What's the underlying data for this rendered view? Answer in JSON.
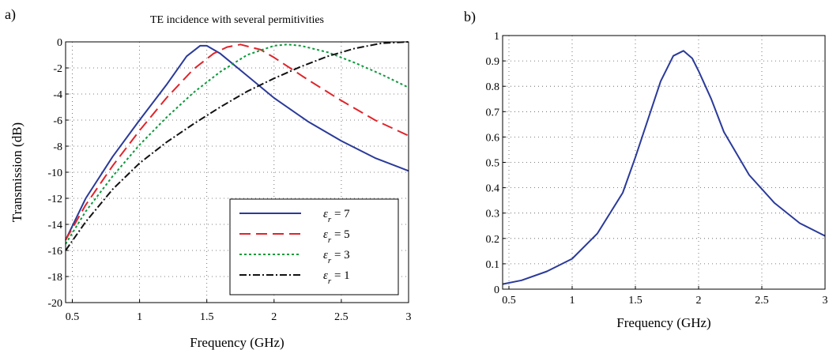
{
  "chart_data": [
    {
      "panel": "a)",
      "type": "line",
      "title": "TE incidence with several permitivities",
      "xlabel": "Frequency (GHz)",
      "ylabel": "Transmission (dB)",
      "xlim": [
        0.45,
        3
      ],
      "ylim": [
        -20,
        0
      ],
      "xticks": [
        "0.5",
        "1",
        "1.5",
        "2",
        "2.5",
        "3"
      ],
      "yticks": [
        "0",
        "-2",
        "-4",
        "-6",
        "-8",
        "-10",
        "-12",
        "-14",
        "-16",
        "-18",
        "-20"
      ],
      "grid": true,
      "legend": {
        "position": "bottom-right"
      },
      "series": [
        {
          "name": "εr = 7",
          "legend_base": "ε",
          "legend_sub": "r",
          "legend_value": " = 7",
          "color": "#2a3a9a",
          "dash": "solid",
          "x": [
            0.45,
            0.6,
            0.8,
            1.0,
            1.2,
            1.35,
            1.45,
            1.5,
            1.6,
            1.8,
            2.0,
            2.25,
            2.5,
            2.75,
            3.0
          ],
          "y": [
            -15.2,
            -12.0,
            -8.8,
            -6.0,
            -3.3,
            -1.1,
            -0.3,
            -0.3,
            -0.9,
            -2.6,
            -4.3,
            -6.1,
            -7.6,
            -8.9,
            -9.9
          ]
        },
        {
          "name": "εr = 5",
          "legend_base": "ε",
          "legend_sub": "r",
          "legend_value": " = 5",
          "color": "#e0242a",
          "dash": "long-dash",
          "x": [
            0.45,
            0.6,
            0.8,
            1.0,
            1.2,
            1.4,
            1.55,
            1.65,
            1.75,
            1.9,
            2.0,
            2.25,
            2.5,
            2.75,
            3.0
          ],
          "y": [
            -15.2,
            -12.5,
            -9.5,
            -6.8,
            -4.3,
            -2.1,
            -0.9,
            -0.4,
            -0.2,
            -0.6,
            -1.2,
            -2.9,
            -4.5,
            -6.0,
            -7.2
          ]
        },
        {
          "name": "εr = 3",
          "legend_base": "ε",
          "legend_sub": "r",
          "legend_value": " = 3",
          "color": "#0a9a3a",
          "dash": "dotted",
          "x": [
            0.45,
            0.6,
            0.8,
            1.0,
            1.2,
            1.4,
            1.6,
            1.8,
            2.0,
            2.1,
            2.2,
            2.4,
            2.6,
            2.8,
            3.0
          ],
          "y": [
            -15.5,
            -13.0,
            -10.3,
            -7.9,
            -5.8,
            -3.9,
            -2.3,
            -1.0,
            -0.3,
            -0.2,
            -0.3,
            -0.8,
            -1.6,
            -2.5,
            -3.5
          ]
        },
        {
          "name": "εr = 1",
          "legend_base": "ε",
          "legend_sub": "r",
          "legend_value": " = 1",
          "color": "#111111",
          "dash": "dash-dot",
          "x": [
            0.45,
            0.6,
            0.8,
            1.0,
            1.2,
            1.4,
            1.6,
            1.8,
            2.0,
            2.2,
            2.4,
            2.6,
            2.8,
            3.0
          ],
          "y": [
            -16.0,
            -13.8,
            -11.3,
            -9.3,
            -7.7,
            -6.3,
            -5.0,
            -3.8,
            -2.8,
            -1.9,
            -1.1,
            -0.5,
            -0.1,
            0.0
          ]
        }
      ]
    },
    {
      "panel": "b)",
      "type": "line",
      "title": "",
      "xlabel": "Frequency (GHz)",
      "ylabel": "",
      "xlim": [
        0.45,
        3
      ],
      "ylim": [
        0,
        1
      ],
      "xticks": [
        "0.5",
        "1",
        "1.5",
        "2",
        "2.5",
        "3"
      ],
      "yticks": [
        "0",
        "0.1",
        "0.2",
        "0.3",
        "0.4",
        "0.5",
        "0.6",
        "0.7",
        "0.8",
        "0.9",
        "1"
      ],
      "grid": true,
      "series": [
        {
          "color": "#2a3a9a",
          "dash": "solid",
          "x": [
            0.45,
            0.6,
            0.8,
            1.0,
            1.2,
            1.4,
            1.5,
            1.6,
            1.7,
            1.8,
            1.88,
            1.95,
            2.0,
            2.1,
            2.2,
            2.4,
            2.6,
            2.8,
            3.0
          ],
          "y": [
            0.02,
            0.035,
            0.07,
            0.12,
            0.22,
            0.38,
            0.52,
            0.67,
            0.82,
            0.92,
            0.94,
            0.91,
            0.86,
            0.75,
            0.62,
            0.45,
            0.34,
            0.26,
            0.21
          ]
        }
      ]
    }
  ]
}
